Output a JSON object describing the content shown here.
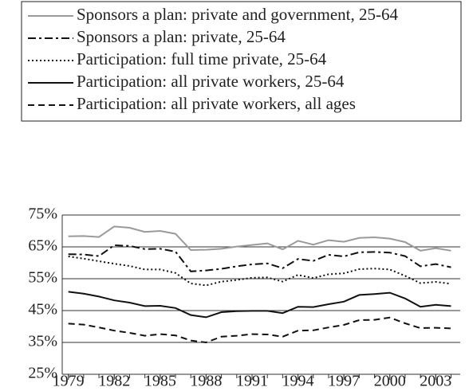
{
  "chart_data": {
    "type": "line",
    "x": [
      1979,
      1980,
      1981,
      1982,
      1983,
      1984,
      1985,
      1986,
      1987,
      1988,
      1989,
      1990,
      1991,
      1992,
      1993,
      1994,
      1995,
      1996,
      1997,
      1998,
      1999,
      2000,
      2001,
      2002,
      2003,
      2004
    ],
    "series": [
      {
        "name": "Sponsors a plan: private and government, 25-64",
        "color": "#9a9a9a",
        "dash": "solid",
        "values": [
          68.3,
          68.4,
          68.1,
          71.4,
          71.0,
          69.7,
          70.0,
          69.1,
          64.0,
          64.1,
          64.4,
          65.1,
          65.6,
          66.1,
          64.2,
          66.9,
          65.7,
          67.1,
          66.6,
          67.8,
          68.0,
          67.6,
          66.5,
          63.8,
          64.6,
          63.8
        ]
      },
      {
        "name": "Sponsors a plan: private, 25-64",
        "color": "#111111",
        "dash": "dashdot",
        "values": [
          62.7,
          62.6,
          62.1,
          65.5,
          65.3,
          64.3,
          64.4,
          63.5,
          57.3,
          57.6,
          58.1,
          58.9,
          59.5,
          59.8,
          58.3,
          61.2,
          60.6,
          62.5,
          62.0,
          63.3,
          63.4,
          63.2,
          62.1,
          58.9,
          59.6,
          58.6
        ]
      },
      {
        "name": "Participation: full time private, 25-64",
        "color": "#111111",
        "dash": "dotted",
        "values": [
          62.0,
          61.3,
          60.5,
          59.7,
          59.0,
          57.9,
          57.9,
          56.8,
          53.5,
          52.9,
          54.1,
          54.6,
          55.3,
          55.4,
          54.1,
          56.2,
          55.2,
          56.4,
          56.7,
          58.0,
          58.2,
          57.9,
          55.9,
          53.6,
          54.0,
          53.4
        ]
      },
      {
        "name": "Participation: all private workers, 25-64",
        "color": "#111111",
        "dash": "solid",
        "values": [
          50.9,
          50.3,
          49.4,
          48.2,
          47.5,
          46.4,
          46.5,
          45.8,
          43.6,
          42.9,
          44.5,
          44.8,
          44.9,
          44.9,
          44.2,
          46.2,
          46.1,
          47.0,
          47.8,
          49.9,
          50.2,
          50.6,
          48.8,
          46.2,
          46.8,
          46.4
        ]
      },
      {
        "name": "Participation: all private workers, all ages",
        "color": "#111111",
        "dash": "dashed",
        "values": [
          40.9,
          40.6,
          39.7,
          38.7,
          38.0,
          37.1,
          37.6,
          37.2,
          35.6,
          35.0,
          36.8,
          37.1,
          37.6,
          37.5,
          36.8,
          38.7,
          38.8,
          39.7,
          40.5,
          42.0,
          42.1,
          42.8,
          41.0,
          39.5,
          39.6,
          39.4
        ]
      }
    ],
    "xlim": [
      1978.6,
      2004.6
    ],
    "xticks": [
      1979,
      1982,
      1985,
      1988,
      1991,
      1994,
      1997,
      2000,
      2003
    ],
    "ylim": [
      25,
      75
    ],
    "yticks": [
      {
        "value": 25,
        "label": "25%"
      },
      {
        "value": 35,
        "label": "35%"
      },
      {
        "value": 45,
        "label": "45%"
      },
      {
        "value": 55,
        "label": "55%"
      },
      {
        "value": 65,
        "label": "65%"
      },
      {
        "value": 75,
        "label": "75%"
      }
    ],
    "grid": true,
    "legend": "top"
  }
}
